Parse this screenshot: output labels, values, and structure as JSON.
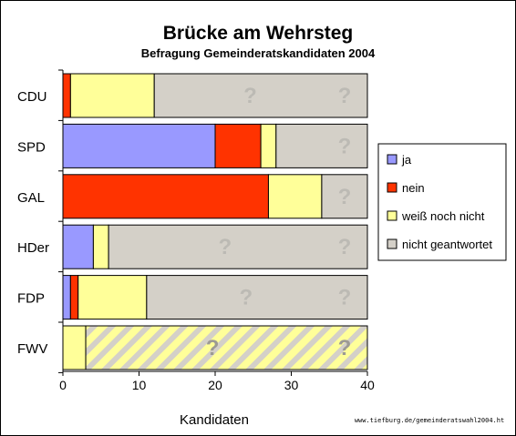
{
  "chart_data": {
    "type": "bar",
    "orientation": "horizontal",
    "stacked": true,
    "title": "Brücke am Wehrsteg",
    "subtitle": "Befragung Gemeinderatskandidaten 2004",
    "xlabel": "Kandidaten",
    "ylabel": "",
    "xlim": [
      0,
      40
    ],
    "x_ticks": [
      "0",
      "10",
      "20",
      "30",
      "40"
    ],
    "grid": false,
    "legend_position": "right",
    "categories": [
      "CDU",
      "SPD",
      "GAL",
      "HDer",
      "FDP",
      "FWV"
    ],
    "series": [
      {
        "name": "ja",
        "color": "#9999ff",
        "values": [
          0,
          20,
          0,
          4,
          1,
          0
        ]
      },
      {
        "name": "nein",
        "color": "#ff3300",
        "values": [
          1,
          6,
          27,
          0,
          1,
          0
        ]
      },
      {
        "name": "weiß noch nicht",
        "color": "#ffff99",
        "values": [
          11,
          2,
          7,
          2,
          9,
          3
        ]
      },
      {
        "name": "nicht geantwortet",
        "color": "#d4d0c8",
        "values": [
          28,
          12,
          6,
          34,
          29,
          37
        ]
      }
    ],
    "hatched_categories": [
      "FWV"
    ],
    "unknown_marker": "?"
  },
  "source_note": "www.tiefburg.de/gemeinderatswahl2004.ht"
}
